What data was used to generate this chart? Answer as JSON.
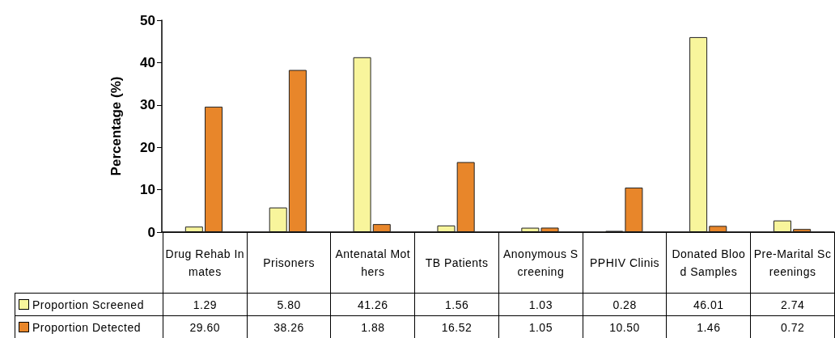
{
  "chart_data": {
    "type": "bar",
    "ylabel": "Percentage (%)",
    "categories": [
      "Drug Rehab Inmates",
      "Prisoners",
      "Antenatal Mothers",
      "TB Patients",
      "Anonymous Screening",
      "PPHIV Clinis",
      "Donated Blood Samples",
      "Pre-Marital Screenings"
    ],
    "series": [
      {
        "name": "Proportion Screened",
        "color": "#f8f59c",
        "values": [
          1.29,
          5.8,
          41.26,
          1.56,
          1.03,
          0.28,
          46.01,
          2.74
        ],
        "value_labels": [
          "1.29",
          "5.80",
          "41.26",
          "1.56",
          "1.03",
          "0.28",
          "46.01",
          "2.74"
        ]
      },
      {
        "name": "Proportion Detected",
        "color": "#e8862a",
        "values": [
          29.6,
          38.26,
          1.88,
          16.52,
          1.05,
          10.5,
          1.46,
          0.72
        ],
        "value_labels": [
          "29.60",
          "38.26",
          "1.88",
          "16.52",
          "1.05",
          "10.50",
          "1.46",
          "0.72"
        ]
      }
    ],
    "ylim": [
      0,
      50
    ],
    "yticks": [
      0,
      10,
      20,
      30,
      40,
      50
    ],
    "grid": false,
    "legend": "bottom left"
  }
}
